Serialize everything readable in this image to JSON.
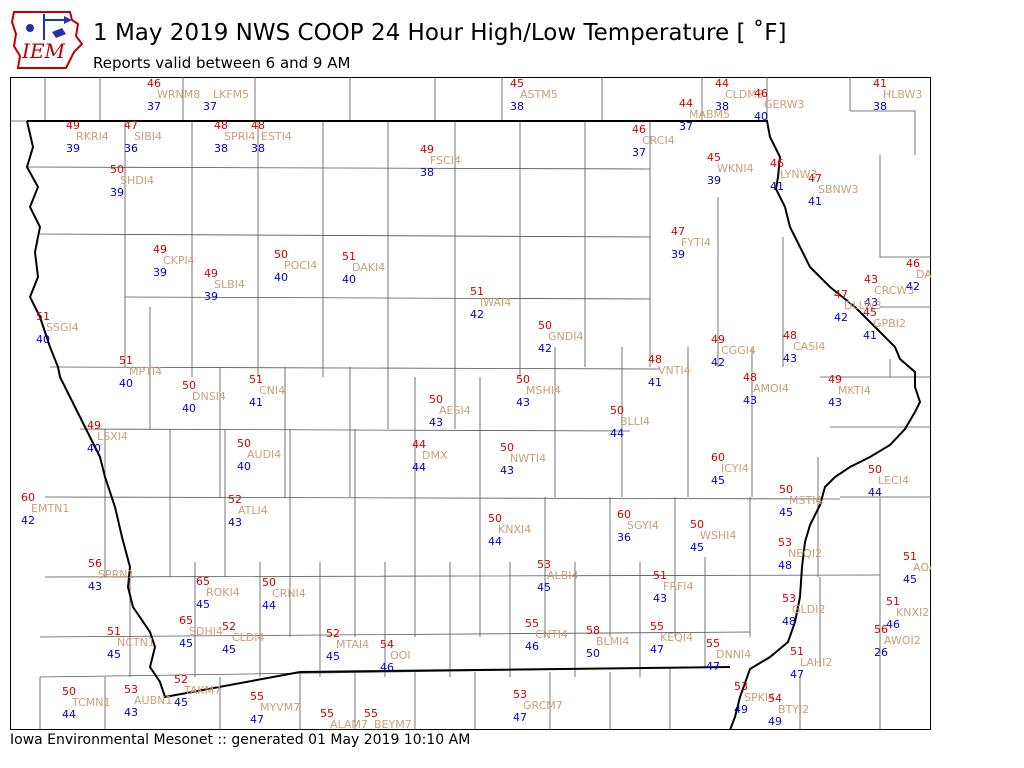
{
  "title": "1 May 2019 NWS COOP 24 Hour High/Low Temperature [ ˚F]",
  "subtitle": "Reports valid between 6 and 9 AM",
  "footer": "Iowa Environmental Mesonet :: generated 01 May 2019 10:10 AM",
  "logo_text": "IEM",
  "colors": {
    "high": "#d00000",
    "low": "#0000c8",
    "station": "#c9a07a"
  },
  "stations": [
    {
      "id": "WRNM8",
      "hi": "46",
      "lo": "37"
    },
    {
      "id": "LKFM5",
      "hi": "",
      "lo": "37"
    },
    {
      "id": "ASTM5",
      "hi": "45",
      "lo": "38"
    },
    {
      "id": "CLDM5",
      "hi": "44",
      "lo": "38"
    },
    {
      "id": "GERW3",
      "hi": "46",
      "lo": "40"
    },
    {
      "id": "HLBW3",
      "hi": "41",
      "lo": "38"
    },
    {
      "id": "MABM5",
      "hi": "44",
      "lo": "37"
    },
    {
      "id": "RKRI4",
      "hi": "49",
      "lo": "39"
    },
    {
      "id": "SIBI4",
      "hi": "47",
      "lo": "36"
    },
    {
      "id": "SPRI4",
      "hi": "48",
      "lo": "38"
    },
    {
      "id": "ESTI4",
      "hi": "48",
      "lo": "38"
    },
    {
      "id": "FSCI4",
      "hi": "49",
      "lo": "38"
    },
    {
      "id": "CRCI4",
      "hi": "46",
      "lo": "37"
    },
    {
      "id": "WKNI4",
      "hi": "45",
      "lo": "39"
    },
    {
      "id": "LYNW3",
      "hi": "46",
      "lo": "41"
    },
    {
      "id": "SBNW3",
      "hi": "47",
      "lo": "41"
    },
    {
      "id": "SHDI4",
      "hi": "50",
      "lo": "39"
    },
    {
      "id": "CKPI4",
      "hi": "49",
      "lo": "39"
    },
    {
      "id": "SLBI4",
      "hi": "49",
      "lo": "39"
    },
    {
      "id": "POCI4",
      "hi": "50",
      "lo": "40"
    },
    {
      "id": "DAKI4",
      "hi": "51",
      "lo": "40"
    },
    {
      "id": "FYTI4",
      "hi": "47",
      "lo": "39"
    },
    {
      "id": "DAR",
      "hi": "46",
      "lo": "42"
    },
    {
      "id": "CRCW3",
      "hi": "43",
      "lo": "43"
    },
    {
      "id": "DLLW3",
      "hi": "47",
      "lo": "42"
    },
    {
      "id": "GPBI2",
      "hi": "45",
      "lo": "41"
    },
    {
      "id": "SSGI4",
      "hi": "51",
      "lo": "40"
    },
    {
      "id": "IWAI4",
      "hi": "51",
      "lo": "42"
    },
    {
      "id": "GNDI4",
      "hi": "50",
      "lo": "42"
    },
    {
      "id": "CGGI4",
      "hi": "49",
      "lo": "42"
    },
    {
      "id": "CASI4",
      "hi": "48",
      "lo": "43"
    },
    {
      "id": "MPTI4",
      "hi": "51",
      "lo": "40"
    },
    {
      "id": "VNTI4",
      "hi": "48",
      "lo": "41"
    },
    {
      "id": "DNSI4",
      "hi": "50",
      "lo": "40"
    },
    {
      "id": "CNI4",
      "hi": "51",
      "lo": "41"
    },
    {
      "id": "AESI4",
      "hi": "50",
      "lo": "43"
    },
    {
      "id": "MSHI4",
      "hi": "50",
      "lo": "43"
    },
    {
      "id": "AMOI4",
      "hi": "48",
      "lo": "43"
    },
    {
      "id": "MKTI4",
      "hi": "49",
      "lo": "43"
    },
    {
      "id": "BLLI4",
      "hi": "50",
      "lo": "44"
    },
    {
      "id": "LSXI4",
      "hi": "49",
      "lo": "40"
    },
    {
      "id": "DMX",
      "hi": "44",
      "lo": "44"
    },
    {
      "id": "AUDI4",
      "hi": "50",
      "lo": "40"
    },
    {
      "id": "NWTI4",
      "hi": "50",
      "lo": "43"
    },
    {
      "id": "ICYI4",
      "hi": "60",
      "lo": "45"
    },
    {
      "id": "LECI4",
      "hi": "50",
      "lo": "44"
    },
    {
      "id": "EMTN1",
      "hi": "60",
      "lo": "42"
    },
    {
      "id": "ATLI4",
      "hi": "52",
      "lo": "43"
    },
    {
      "id": "MSTI4",
      "hi": "50",
      "lo": "45"
    },
    {
      "id": "KNXI4",
      "hi": "50",
      "lo": "44"
    },
    {
      "id": "SGYI4",
      "hi": "60",
      "lo": "36"
    },
    {
      "id": "WSHI4",
      "hi": "50",
      "lo": "45"
    },
    {
      "id": "NEQI2",
      "hi": "53",
      "lo": "48"
    },
    {
      "id": "AOAI2",
      "hi": "51",
      "lo": "45"
    },
    {
      "id": "SPRN1",
      "hi": "56",
      "lo": "43"
    },
    {
      "id": "ROKI4",
      "hi": "65",
      "lo": "45"
    },
    {
      "id": "CRNI4",
      "hi": "50",
      "lo": "44"
    },
    {
      "id": "ALBI4",
      "hi": "53",
      "lo": "45"
    },
    {
      "id": "FRFI4",
      "hi": "51",
      "lo": "43"
    },
    {
      "id": "GLDI2",
      "hi": "53",
      "lo": "48"
    },
    {
      "id": "KNXI2",
      "hi": "51",
      "lo": "46"
    },
    {
      "id": "SDHI4",
      "hi": "65",
      "lo": "45"
    },
    {
      "id": "CLDI4",
      "hi": "52",
      "lo": "45"
    },
    {
      "id": "NCTN1",
      "hi": "51",
      "lo": "45"
    },
    {
      "id": "MTAI4",
      "hi": "52",
      "lo": "45"
    },
    {
      "id": "OOI",
      "hi": "54",
      "lo": "46"
    },
    {
      "id": "CNTI4",
      "hi": "55",
      "lo": "46"
    },
    {
      "id": "BLMI4",
      "hi": "58",
      "lo": "50"
    },
    {
      "id": "KEQI4",
      "hi": "55",
      "lo": "47"
    },
    {
      "id": "DNNI4",
      "hi": "55",
      "lo": "47"
    },
    {
      "id": "LAHI2",
      "hi": "51",
      "lo": "47"
    },
    {
      "id": "AWOI2",
      "hi": "56",
      "lo": "26"
    },
    {
      "id": "TCMN1",
      "hi": "50",
      "lo": "44"
    },
    {
      "id": "AUBN1",
      "hi": "53",
      "lo": "43"
    },
    {
      "id": "TAKM7",
      "hi": "52",
      "lo": "45"
    },
    {
      "id": "MYVM7",
      "hi": "55",
      "lo": "47"
    },
    {
      "id": "ALAM7",
      "hi": "55",
      "lo": ""
    },
    {
      "id": "BEYM7",
      "hi": "55",
      "lo": ""
    },
    {
      "id": "GRCM7",
      "hi": "53",
      "lo": "47"
    },
    {
      "id": "SPKI4",
      "hi": "53",
      "lo": "49"
    },
    {
      "id": "BTYI2",
      "hi": "54",
      "lo": "49"
    }
  ]
}
